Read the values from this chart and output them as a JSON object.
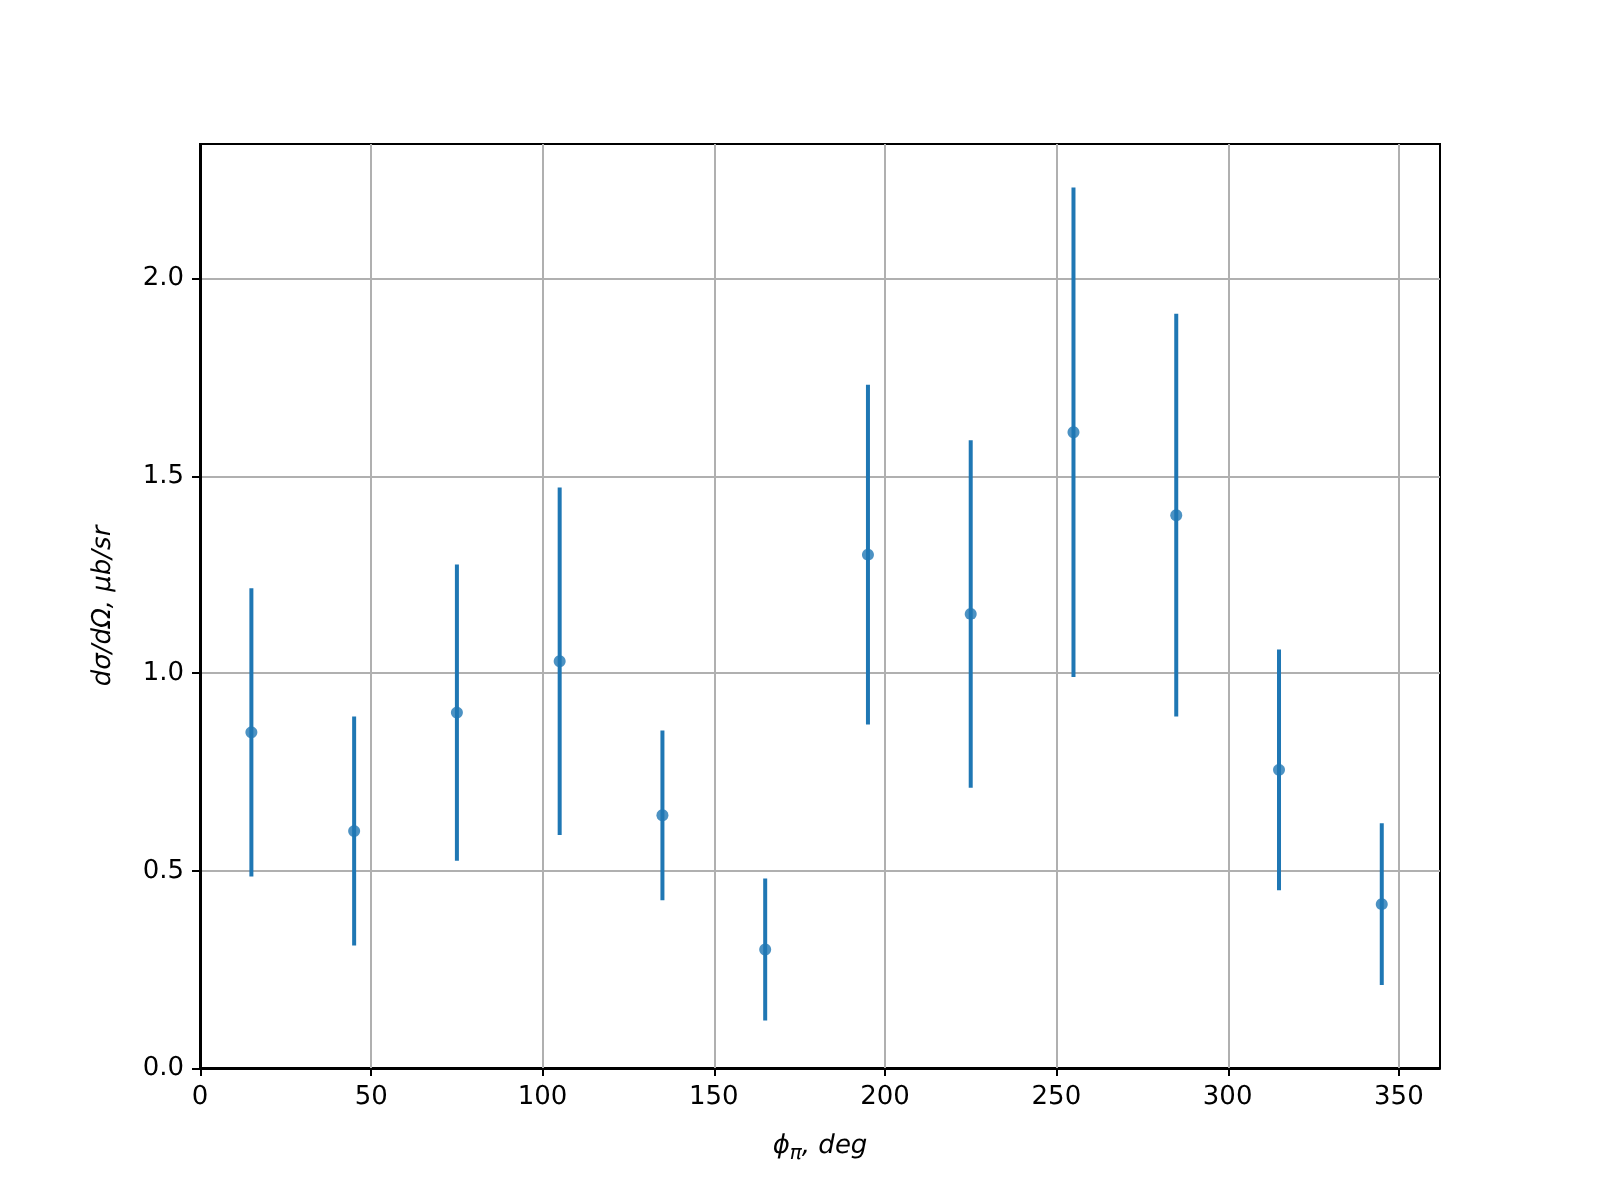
{
  "chart_data": {
    "type": "scatter",
    "xlabel": "ϕ$_{π}$, deg",
    "ylabel": "dσ/dΩ, μb/sr",
    "x": [
      15,
      45,
      75,
      105,
      135,
      165,
      195,
      225,
      255,
      285,
      315,
      345
    ],
    "series": [
      {
        "color": "#1f77b4",
        "values": [
          0.85,
          0.6,
          0.9,
          1.03,
          0.64,
          0.3,
          1.3,
          1.15,
          1.61,
          1.4,
          0.755,
          0.415
        ],
        "errors": [
          0.365,
          0.29,
          0.375,
          0.44,
          0.215,
          0.18,
          0.43,
          0.44,
          0.62,
          0.51,
          0.305,
          0.205
        ]
      }
    ],
    "xlim": [
      0,
      362
    ],
    "xticks": [
      0,
      50,
      100,
      150,
      200,
      250,
      300,
      350
    ],
    "ylim": [
      0,
      2.34
    ],
    "yticks": [
      {
        "value": 0,
        "label": "0.0"
      },
      {
        "value": 0.5,
        "label": "0.5"
      },
      {
        "value": 1,
        "label": "1.0"
      },
      {
        "value": 1.5,
        "label": "1.5"
      },
      {
        "value": 2,
        "label": "2.0"
      }
    ],
    "grid": true,
    "marker": "circle"
  }
}
